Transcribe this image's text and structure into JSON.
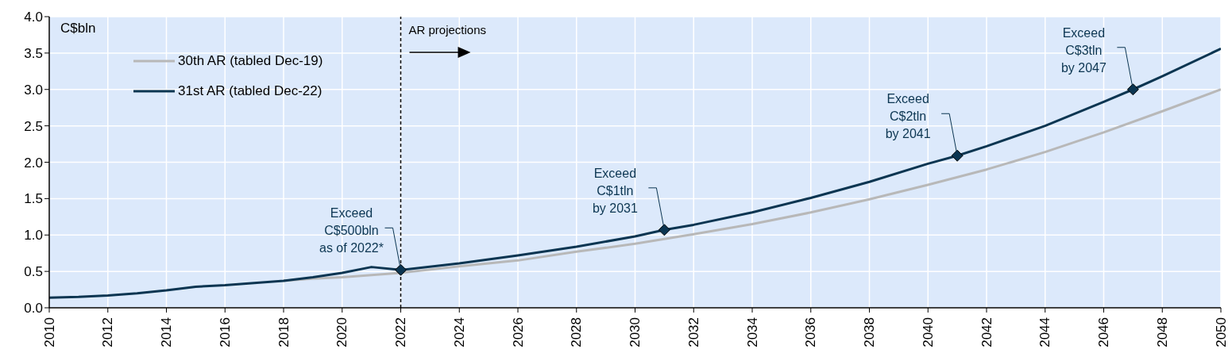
{
  "chart_data": {
    "type": "line",
    "ylabel": "C$bln",
    "xlim": [
      2010,
      2050
    ],
    "xticks": [
      2010,
      2012,
      2014,
      2016,
      2018,
      2020,
      2022,
      2024,
      2026,
      2028,
      2030,
      2032,
      2034,
      2036,
      2038,
      2040,
      2042,
      2044,
      2046,
      2048,
      2050
    ],
    "ylim": [
      0,
      4
    ],
    "yticks": [
      {
        "value": 0,
        "label": "0.0"
      },
      0.5,
      {
        "value": 1,
        "label": "1.0"
      },
      1.5,
      {
        "value": 2,
        "label": "2.0"
      },
      2.5,
      {
        "value": 3,
        "label": "3.0"
      },
      3.5,
      {
        "value": 4,
        "label": "4.0"
      }
    ],
    "grid": true,
    "legend": "top left",
    "series": [
      {
        "name": "30th AR (tabled Dec-19)",
        "color": "#b8b8b8",
        "x": [
          2018,
          2019,
          2020,
          2022,
          2024,
          2026,
          2028,
          2030,
          2032,
          2034,
          2036,
          2038,
          2040,
          2042,
          2044,
          2046,
          2048,
          2050
        ],
        "values": [
          0.37,
          0.4,
          0.42,
          0.48,
          0.57,
          0.65,
          0.77,
          0.88,
          1.01,
          1.15,
          1.31,
          1.49,
          1.69,
          1.9,
          2.14,
          2.41,
          2.7,
          3.0
        ]
      },
      {
        "name": "31st AR (tabled Dec-22)",
        "color": "#0b3551",
        "x": [
          2010,
          2011,
          2012,
          2013,
          2014,
          2015,
          2016,
          2017,
          2018,
          2019,
          2020,
          2021,
          2022,
          2024,
          2026,
          2028,
          2030,
          2031,
          2032,
          2034,
          2036,
          2038,
          2040,
          2041,
          2042,
          2044,
          2046,
          2047,
          2048,
          2050
        ],
        "values": [
          0.14,
          0.15,
          0.17,
          0.2,
          0.24,
          0.29,
          0.31,
          0.34,
          0.37,
          0.42,
          0.48,
          0.56,
          0.52,
          0.61,
          0.72,
          0.84,
          0.98,
          1.07,
          1.14,
          1.31,
          1.51,
          1.73,
          1.98,
          2.09,
          2.22,
          2.5,
          2.83,
          3.0,
          3.18,
          3.56
        ]
      },
      {
        "type": "scatter",
        "marker": "diamond",
        "color": "#0b3551",
        "x": [
          2022,
          2031,
          2041,
          2047
        ],
        "values": [
          0.52,
          1.07,
          2.09,
          3.0
        ]
      }
    ],
    "ref_lines": [
      {
        "axis": "x",
        "value": 2022,
        "label": "AR projections",
        "line_style": "dashed",
        "color": "#000000"
      }
    ],
    "annotations": [
      {
        "text": "Exceed\nC$500bln\nas of 2022*",
        "x": 2022,
        "y": 0.52
      },
      {
        "text": "Exceed\nC$1tln\nby 2031",
        "x": 2031,
        "y": 1.07
      },
      {
        "text": "Exceed\nC$2tln\nby 2041",
        "x": 2041,
        "y": 2.09
      },
      {
        "text": "Exceed\nC$3tln\nby 2047",
        "x": 2047,
        "y": 3.0
      }
    ]
  }
}
